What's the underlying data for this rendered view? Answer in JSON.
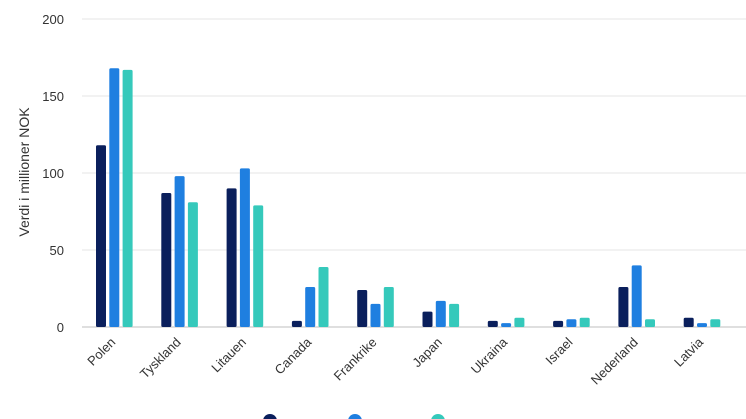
{
  "chart_data": {
    "type": "bar",
    "ylabel": "Verdi i millioner NOK",
    "xlabel": "",
    "ylim": [
      0,
      200
    ],
    "yticks": [
      0,
      50,
      100,
      150,
      200
    ],
    "grid": true,
    "legend_position": "bottom",
    "categories": [
      "Polen",
      "Tyskland",
      "Litauen",
      "Canada",
      "Frankrike",
      "Japan",
      "Ukraina",
      "Israel",
      "Nederland",
      "Latvia"
    ],
    "series": [
      {
        "color": "#0a1f5c",
        "values": [
          118,
          87,
          90,
          4,
          24,
          10,
          4,
          4,
          26,
          6
        ]
      },
      {
        "color": "#1f7fe0",
        "values": [
          168,
          98,
          103,
          26,
          15,
          17,
          2.5,
          5,
          40,
          2.5
        ]
      },
      {
        "color": "#35c9bb",
        "values": [
          167,
          81,
          79,
          39,
          26,
          15,
          6,
          6,
          5,
          5
        ]
      }
    ]
  }
}
